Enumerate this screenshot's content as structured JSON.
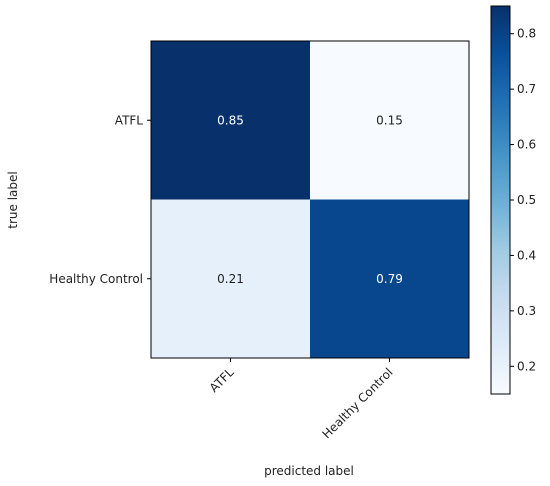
{
  "chart_data": {
    "type": "heatmap",
    "title": "",
    "xlabel": "predicted label",
    "ylabel": "true label",
    "x_categories": [
      "ATFL",
      "Healthy Control"
    ],
    "y_categories": [
      "ATFL",
      "Healthy Control"
    ],
    "values": [
      [
        0.85,
        0.15
      ],
      [
        0.21,
        0.79
      ]
    ],
    "value_labels": [
      [
        "0.85",
        "0.15"
      ],
      [
        "0.21",
        "0.79"
      ]
    ],
    "colormap": "Blues",
    "colorbar": {
      "min": 0.15,
      "max": 0.85,
      "ticks": [
        0.2,
        0.3,
        0.4,
        0.5,
        0.6,
        0.7,
        0.8
      ],
      "tick_labels": [
        "0.2",
        "0.3",
        "0.4",
        "0.5",
        "0.6",
        "0.7",
        "0.8"
      ]
    },
    "colors": {
      "low": "#f7fbff",
      "high": "#08306b",
      "text_light": "#ffffff",
      "text_dark": "#222222"
    }
  }
}
